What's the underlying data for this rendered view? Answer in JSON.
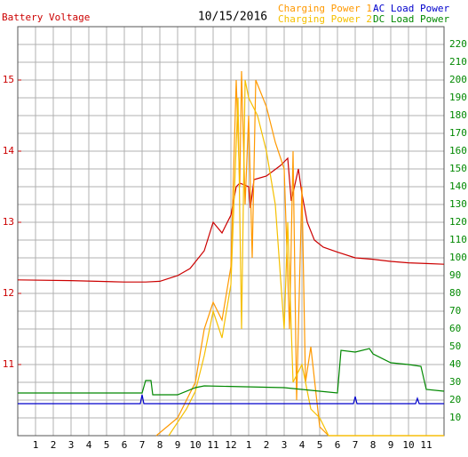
{
  "chart_data": {
    "type": "line",
    "title": "10/15/2016",
    "xlim": [
      0,
      24
    ],
    "xticks": [
      1,
      2,
      3,
      4,
      5,
      6,
      7,
      8,
      9,
      10,
      11,
      12,
      {
        "value": 13,
        "label": "1"
      },
      {
        "value": 14,
        "label": "2"
      },
      {
        "value": 15,
        "label": "3"
      },
      {
        "value": 16,
        "label": "4"
      },
      {
        "value": 17,
        "label": "5"
      },
      {
        "value": 18,
        "label": "6"
      },
      {
        "value": 19,
        "label": "7"
      },
      {
        "value": 20,
        "label": "8"
      },
      {
        "value": 21,
        "label": "9"
      },
      {
        "value": 22,
        "label": "10"
      },
      {
        "value": 23,
        "label": "11"
      }
    ],
    "ylim": [
      10,
      15.75
    ],
    "yticks": [
      11,
      12,
      13,
      14,
      15
    ],
    "y2lim": [
      0,
      230
    ],
    "y2ticks": [
      10,
      20,
      30,
      40,
      50,
      60,
      70,
      80,
      90,
      100,
      110,
      120,
      130,
      140,
      150,
      160,
      170,
      180,
      190,
      200,
      210,
      220
    ],
    "grid": true,
    "series": [
      {
        "name": "Battery Voltage",
        "color": "#cc0000",
        "x": [
          0,
          3,
          6,
          7.2,
          8,
          9,
          9.7,
          10.5,
          11,
          11.5,
          12,
          12.3,
          12.5,
          13,
          13.1,
          13.3,
          14,
          14.8,
          15,
          15.2,
          15.4,
          15.8,
          16,
          16.3,
          16.7,
          17.2,
          18,
          19,
          20,
          21,
          22,
          23,
          24
        ],
        "values": [
          12.19,
          12.18,
          12.16,
          12.16,
          12.17,
          12.25,
          12.35,
          12.6,
          13.0,
          12.85,
          13.1,
          13.5,
          13.55,
          13.5,
          13.2,
          13.6,
          13.65,
          13.8,
          13.85,
          13.9,
          13.3,
          13.75,
          13.4,
          13.0,
          12.75,
          12.65,
          12.58,
          12.5,
          12.48,
          12.45,
          12.43,
          12.42,
          12.41
        ]
      },
      {
        "name": "Charging Power 1",
        "color": "#ff9900",
        "axis": "y2",
        "x": [
          7.8,
          9,
          10,
          10.5,
          11,
          11.5,
          12,
          12.3,
          12.5,
          12.6,
          12.8,
          13,
          13.2,
          13.4,
          13.6,
          14,
          14.5,
          15,
          15.3,
          15.5,
          15.7,
          16,
          16.2,
          16.5,
          17,
          17.5,
          18,
          24
        ],
        "values": [
          0,
          10,
          30,
          60,
          75,
          65,
          95,
          200,
          140,
          205,
          130,
          180,
          100,
          200,
          195,
          185,
          165,
          150,
          60,
          160,
          20,
          140,
          30,
          50,
          5,
          0,
          0,
          0
        ]
      },
      {
        "name": "Charging Power 2",
        "color": "#f5c000",
        "axis": "y2",
        "x": [
          8.5,
          9.5,
          10,
          10.5,
          11,
          11.5,
          12,
          12.4,
          12.6,
          12.8,
          13,
          13.5,
          14,
          14.5,
          15,
          15.2,
          15.5,
          16,
          16.5,
          17,
          17.5,
          24
        ],
        "values": [
          0,
          15,
          25,
          45,
          70,
          55,
          85,
          190,
          60,
          200,
          190,
          180,
          160,
          130,
          60,
          120,
          30,
          40,
          15,
          10,
          0,
          0
        ]
      },
      {
        "name": "AC Load Power",
        "color": "#0000cc",
        "axis": "y2",
        "x": [
          0,
          6.9,
          7,
          7.1,
          12,
          18.9,
          19,
          19.1,
          22.4,
          22.5,
          22.6,
          24
        ],
        "values": [
          18,
          18,
          23,
          18,
          18,
          18,
          22,
          18,
          18,
          21,
          18,
          18
        ]
      },
      {
        "name": "DC Load Power",
        "color": "#008800",
        "axis": "y2",
        "x": [
          0,
          7,
          7.2,
          7.5,
          7.6,
          9,
          10,
          10.5,
          15,
          17,
          18,
          18.2,
          19,
          19.8,
          20,
          21,
          22,
          22.7,
          23,
          24
        ],
        "values": [
          24,
          24,
          31,
          31,
          23,
          23,
          27,
          28,
          27,
          25,
          24,
          48,
          47,
          49,
          46,
          41,
          40,
          39,
          26,
          25
        ]
      }
    ]
  }
}
